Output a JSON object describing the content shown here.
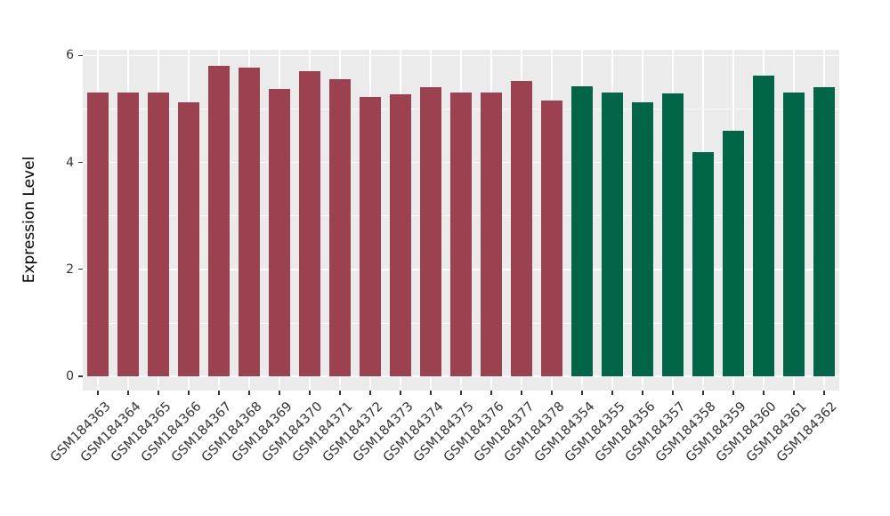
{
  "chart_data": {
    "type": "bar",
    "title": "",
    "xlabel": "",
    "ylabel": "Expression Level",
    "ylim": [
      0,
      6.1
    ],
    "yticks": [
      0,
      2,
      4,
      6
    ],
    "yticks_minor": [
      1,
      3,
      5
    ],
    "grid": "on",
    "legend_position": "none",
    "categories": [
      "GSM184363",
      "GSM184364",
      "GSM184365",
      "GSM184366",
      "GSM184367",
      "GSM184368",
      "GSM184369",
      "GSM184370",
      "GSM184371",
      "GSM184372",
      "GSM184373",
      "GSM184374",
      "GSM184375",
      "GSM184376",
      "GSM184377",
      "GSM184378",
      "GSM184354",
      "GSM184355",
      "GSM184356",
      "GSM184357",
      "GSM184358",
      "GSM184359",
      "GSM184360",
      "GSM184361",
      "GSM184362"
    ],
    "values": [
      5.31,
      5.3,
      5.3,
      5.12,
      5.8,
      5.78,
      5.37,
      5.7,
      5.55,
      5.22,
      5.27,
      5.4,
      5.31,
      5.31,
      5.53,
      5.16,
      5.42,
      5.3,
      5.12,
      5.29,
      4.19,
      4.59,
      5.62,
      5.3,
      5.4
    ],
    "bar_groups": [
      "group1",
      "group1",
      "group1",
      "group1",
      "group1",
      "group1",
      "group1",
      "group1",
      "group1",
      "group1",
      "group1",
      "group1",
      "group1",
      "group1",
      "group1",
      "group1",
      "group2",
      "group2",
      "group2",
      "group2",
      "group2",
      "group2",
      "group2",
      "group2",
      "group2"
    ],
    "group_colors": {
      "group1": "#9c4150",
      "group2": "#006647"
    },
    "panel_bg": "#ebebeb",
    "grid_color": "#ffffff",
    "tick_color": "#333333",
    "text_color": "#333333"
  }
}
